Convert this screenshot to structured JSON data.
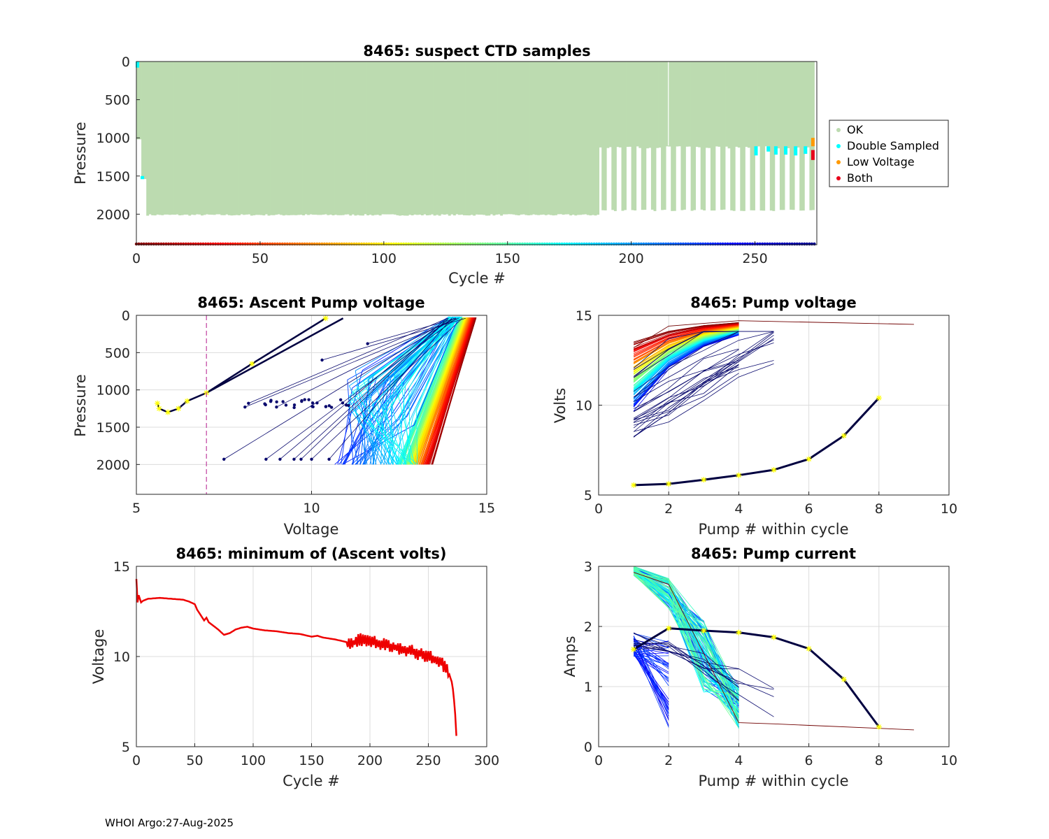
{
  "footer": "WHOI Argo:27-Aug-2025",
  "legend": {
    "items": [
      {
        "label": "OK",
        "color": "#bcdbb0"
      },
      {
        "label": "Double Sampled",
        "color": "#00ffff"
      },
      {
        "label": "Low Voltage",
        "color": "#ff9900"
      },
      {
        "label": "Both",
        "color": "#e8001a"
      }
    ]
  },
  "chart_data": [
    {
      "id": "suspect",
      "type": "bar",
      "title": "8465: suspect CTD samples",
      "xlabel": "Cycle #",
      "ylabel": "Pressure",
      "xlim": [
        0,
        275
      ],
      "ylim": [
        0,
        2400
      ],
      "y_reversed": true,
      "xticks": [
        0,
        50,
        100,
        150,
        200,
        250
      ],
      "yticks": [
        0,
        500,
        1000,
        1500,
        2000
      ],
      "ok_profiles": [
        {
          "from_cycle": 0,
          "to_cycle": 4,
          "max_pressure": 1020
        },
        {
          "from_cycle": 4,
          "to_cycle": 187,
          "max_pressure": 2020
        },
        {
          "from_cycle": 187,
          "to_cycle": 273,
          "max_pressure": 1960,
          "alternate_shallow": 1110
        }
      ],
      "double_sampled": [
        {
          "cycle": 0,
          "pressure_top": 0,
          "pressure_bottom": 80
        },
        {
          "cycle": 2,
          "pressure_top": 1500,
          "pressure_bottom": 1540
        },
        {
          "cycle": 250,
          "pressure_top": 1110,
          "pressure_bottom": 1230
        },
        {
          "cycle": 255,
          "pressure_top": 1110,
          "pressure_bottom": 1180
        },
        {
          "cycle": 258,
          "pressure_top": 1110,
          "pressure_bottom": 1220
        },
        {
          "cycle": 262,
          "pressure_top": 1110,
          "pressure_bottom": 1220
        },
        {
          "cycle": 266,
          "pressure_top": 1110,
          "pressure_bottom": 1230
        },
        {
          "cycle": 270,
          "pressure_top": 1110,
          "pressure_bottom": 1210
        }
      ],
      "low_voltage": [
        {
          "cycle": 273,
          "pressure_top": 1000,
          "pressure_bottom": 1110
        }
      ],
      "both": [
        {
          "cycle": 273,
          "pressure_top": 1160,
          "pressure_bottom": 1290
        }
      ],
      "cycle_color_strip_pressure": 2400
    },
    {
      "id": "ascent",
      "type": "line",
      "title": "8465: Ascent Pump voltage",
      "xlabel": "Voltage",
      "ylabel": "Pressure",
      "xlim": [
        5,
        15
      ],
      "ylim": [
        0,
        2400
      ],
      "y_reversed": true,
      "xticks": [
        5,
        10,
        15
      ],
      "yticks": [
        0,
        500,
        1000,
        1500,
        2000
      ],
      "reference_voltage": 7,
      "latest_cycle_curve": {
        "voltage": [
          5.6,
          5.65,
          5.9,
          6.2,
          6.45,
          7.0,
          8.3,
          10.4
        ],
        "pressure": [
          1180,
          1250,
          1300,
          1250,
          1150,
          1040,
          650,
          40
        ]
      },
      "early_cycle_endpoints": {
        "voltage": [
          7.5,
          8.7,
          8.1,
          9.1,
          9.5,
          9.7,
          10.0,
          10.5,
          10.3,
          11.6,
          8.2,
          9.0
        ],
        "pressure": [
          1930,
          1930,
          1230,
          1930,
          1930,
          1930,
          1930,
          1930,
          600,
          380,
          1180,
          1230
        ]
      },
      "mid_cycle_voltage_range": [
        10.5,
        14.3
      ],
      "late_cycle_voltage_range": [
        12.8,
        14.7
      ]
    },
    {
      "id": "pumpvolt",
      "type": "line",
      "title": "8465: Pump voltage",
      "xlabel": "Pump # within cycle",
      "ylabel": "Volts",
      "xlim": [
        0,
        10
      ],
      "ylim": [
        5,
        15
      ],
      "xticks": [
        0,
        2,
        4,
        6,
        8,
        10
      ],
      "yticks": [
        5,
        10,
        15
      ],
      "latest_cycle": {
        "x": [
          1,
          2,
          3,
          4,
          5,
          6,
          7,
          8
        ],
        "y": [
          5.55,
          5.62,
          5.85,
          6.1,
          6.4,
          7.0,
          8.3,
          10.4
        ]
      },
      "reference_cycle": {
        "x": [
          1,
          2,
          4,
          9
        ],
        "y": [
          13.2,
          14.4,
          14.7,
          14.5
        ]
      },
      "pump1_voltage_range": [
        8.8,
        13.3
      ],
      "pump4_voltage_range": [
        9.2,
        14.6
      ]
    },
    {
      "id": "minvolt",
      "type": "line",
      "title": "8465: minimum of (Ascent volts)",
      "xlabel": "Cycle #",
      "ylabel": "Voltage",
      "xlim": [
        0,
        300
      ],
      "ylim": [
        5,
        15
      ],
      "xticks": [
        0,
        50,
        100,
        150,
        200,
        250,
        300
      ],
      "yticks": [
        5,
        10,
        15
      ],
      "series": [
        {
          "name": "minimum ascent volts",
          "color": "#ee0000",
          "x": [
            0,
            1,
            2,
            4,
            6,
            10,
            20,
            30,
            40,
            45,
            50,
            52,
            55,
            58,
            60,
            62,
            65,
            70,
            75,
            80,
            85,
            90,
            95,
            100,
            110,
            120,
            130,
            140,
            150,
            155,
            160,
            170,
            180,
            185,
            190,
            200,
            210,
            220,
            230,
            240,
            250,
            255,
            260,
            263,
            266,
            268,
            270,
            271,
            272,
            273,
            274
          ],
          "y": [
            14.3,
            13.0,
            13.4,
            13.0,
            13.1,
            13.2,
            13.25,
            13.2,
            13.15,
            13.05,
            12.9,
            12.6,
            12.3,
            12.0,
            12.15,
            11.9,
            11.75,
            11.5,
            11.2,
            11.3,
            11.5,
            11.6,
            11.65,
            11.55,
            11.45,
            11.4,
            11.3,
            11.25,
            11.1,
            11.15,
            11.05,
            10.95,
            10.8,
            10.7,
            10.95,
            10.85,
            10.7,
            10.55,
            10.4,
            10.2,
            10.0,
            9.9,
            9.7,
            9.5,
            9.3,
            9.0,
            8.6,
            8.2,
            7.6,
            6.8,
            5.6
          ]
        }
      ]
    },
    {
      "id": "pumpcurr",
      "type": "line",
      "title": "8465: Pump current",
      "xlabel": "Pump # within cycle",
      "ylabel": "Amps",
      "xlim": [
        0,
        10
      ],
      "ylim": [
        0,
        3
      ],
      "xticks": [
        0,
        2,
        4,
        6,
        8,
        10
      ],
      "yticks": [
        0,
        1,
        2,
        3
      ],
      "latest_cycle": {
        "x": [
          1,
          2,
          3,
          4,
          5,
          6,
          7,
          8
        ],
        "y": [
          1.62,
          1.97,
          1.93,
          1.9,
          1.82,
          1.63,
          1.12,
          0.33
        ]
      },
      "reference_cycle": {
        "x": [
          1,
          2,
          4,
          5,
          9
        ],
        "y": [
          2.9,
          2.7,
          0.4,
          0.38,
          0.28
        ]
      },
      "pump1_current_range": [
        1.5,
        3.0
      ],
      "pump4_current_range": [
        0.3,
        1.9
      ]
    }
  ]
}
